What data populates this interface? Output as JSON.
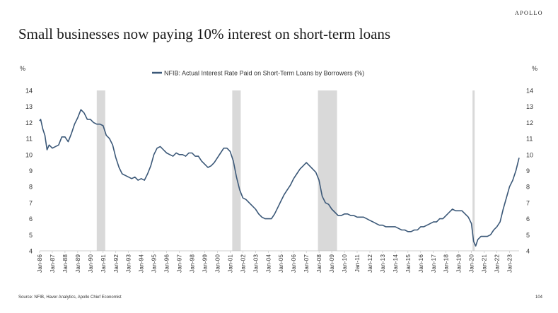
{
  "brand": "APOLLO",
  "title": "Small businesses now paying 10% interest on short-term loans",
  "source": "Source: NFIB, Haver Analytics, Apollo Chief Economist",
  "page_number": "104",
  "chart_data": {
    "type": "line",
    "title": "Small businesses now paying 10% interest on short-term loans",
    "y_unit_left": "%",
    "y_unit_right": "%",
    "ylim": [
      4,
      14
    ],
    "yticks": [
      4,
      5,
      6,
      7,
      8,
      9,
      10,
      11,
      12,
      13,
      14
    ],
    "x_range": [
      "1986-01",
      "2023-10"
    ],
    "x_ticks": [
      "Jan-86",
      "Jan-87",
      "Jan-88",
      "Jan-89",
      "Jan-90",
      "Jan-91",
      "Jan-92",
      "Jan-93",
      "Jan-94",
      "Jan-95",
      "Jan-96",
      "Jan-97",
      "Jan-98",
      "Jan-99",
      "Jan-00",
      "Jan-01",
      "Jan-02",
      "Jan-03",
      "Jan-04",
      "Jan-05",
      "Jan-06",
      "Jan-07",
      "Jan-08",
      "Jan-09",
      "Jan-10",
      "Jan-11",
      "Jan-12",
      "Jan-13",
      "Jan-14",
      "Jan-15",
      "Jan-16",
      "Jan-17",
      "Jan-18",
      "Jan-19",
      "Jan-20",
      "Jan-21",
      "Jan-22",
      "Jan-23"
    ],
    "grid": false,
    "legend_position": "top-center",
    "recessions": [
      {
        "start": "1990-07",
        "end": "1991-03"
      },
      {
        "start": "2001-03",
        "end": "2001-11"
      },
      {
        "start": "2007-12",
        "end": "2009-06"
      },
      {
        "start": "2020-02",
        "end": "2020-04"
      }
    ],
    "series": [
      {
        "name": "NFIB: Actual Interest Rate Paid on Short-Term Loans by Borrowers (%)",
        "color": "#3b5878",
        "points": [
          [
            "1986-01",
            12.1
          ],
          [
            "1986-02",
            12.2
          ],
          [
            "1986-04",
            11.6
          ],
          [
            "1986-06",
            11.2
          ],
          [
            "1986-08",
            10.3
          ],
          [
            "1986-10",
            10.6
          ],
          [
            "1987-01",
            10.4
          ],
          [
            "1987-04",
            10.5
          ],
          [
            "1987-07",
            10.6
          ],
          [
            "1987-10",
            11.1
          ],
          [
            "1988-01",
            11.1
          ],
          [
            "1988-04",
            10.8
          ],
          [
            "1988-07",
            11.3
          ],
          [
            "1988-10",
            11.9
          ],
          [
            "1989-01",
            12.3
          ],
          [
            "1989-04",
            12.8
          ],
          [
            "1989-07",
            12.6
          ],
          [
            "1989-10",
            12.2
          ],
          [
            "1990-01",
            12.2
          ],
          [
            "1990-04",
            12.0
          ],
          [
            "1990-07",
            11.9
          ],
          [
            "1990-10",
            11.9
          ],
          [
            "1991-01",
            11.8
          ],
          [
            "1991-04",
            11.2
          ],
          [
            "1991-07",
            11.0
          ],
          [
            "1991-10",
            10.6
          ],
          [
            "1992-01",
            9.8
          ],
          [
            "1992-04",
            9.2
          ],
          [
            "1992-07",
            8.8
          ],
          [
            "1992-10",
            8.7
          ],
          [
            "1993-01",
            8.6
          ],
          [
            "1993-04",
            8.5
          ],
          [
            "1993-07",
            8.6
          ],
          [
            "1993-10",
            8.4
          ],
          [
            "1994-01",
            8.5
          ],
          [
            "1994-04",
            8.4
          ],
          [
            "1994-07",
            8.8
          ],
          [
            "1994-10",
            9.3
          ],
          [
            "1995-01",
            10.0
          ],
          [
            "1995-04",
            10.4
          ],
          [
            "1995-07",
            10.5
          ],
          [
            "1995-10",
            10.3
          ],
          [
            "1996-01",
            10.1
          ],
          [
            "1996-04",
            10.0
          ],
          [
            "1996-07",
            9.9
          ],
          [
            "1996-10",
            10.1
          ],
          [
            "1997-01",
            10.0
          ],
          [
            "1997-04",
            10.0
          ],
          [
            "1997-07",
            9.9
          ],
          [
            "1997-10",
            10.1
          ],
          [
            "1998-01",
            10.1
          ],
          [
            "1998-04",
            9.9
          ],
          [
            "1998-07",
            9.9
          ],
          [
            "1998-10",
            9.6
          ],
          [
            "1999-01",
            9.4
          ],
          [
            "1999-04",
            9.2
          ],
          [
            "1999-07",
            9.3
          ],
          [
            "1999-10",
            9.5
          ],
          [
            "2000-01",
            9.8
          ],
          [
            "2000-04",
            10.1
          ],
          [
            "2000-07",
            10.4
          ],
          [
            "2000-10",
            10.4
          ],
          [
            "2001-01",
            10.2
          ],
          [
            "2001-04",
            9.6
          ],
          [
            "2001-07",
            8.6
          ],
          [
            "2001-10",
            7.8
          ],
          [
            "2002-01",
            7.3
          ],
          [
            "2002-04",
            7.2
          ],
          [
            "2002-07",
            7.0
          ],
          [
            "2002-10",
            6.8
          ],
          [
            "2003-01",
            6.6
          ],
          [
            "2003-04",
            6.3
          ],
          [
            "2003-07",
            6.1
          ],
          [
            "2003-10",
            6.0
          ],
          [
            "2004-01",
            6.0
          ],
          [
            "2004-04",
            6.0
          ],
          [
            "2004-07",
            6.3
          ],
          [
            "2004-10",
            6.7
          ],
          [
            "2005-01",
            7.1
          ],
          [
            "2005-04",
            7.5
          ],
          [
            "2005-07",
            7.8
          ],
          [
            "2005-10",
            8.1
          ],
          [
            "2006-01",
            8.5
          ],
          [
            "2006-04",
            8.8
          ],
          [
            "2006-07",
            9.1
          ],
          [
            "2006-10",
            9.3
          ],
          [
            "2007-01",
            9.5
          ],
          [
            "2007-04",
            9.3
          ],
          [
            "2007-07",
            9.1
          ],
          [
            "2007-10",
            8.9
          ],
          [
            "2008-01",
            8.4
          ],
          [
            "2008-04",
            7.4
          ],
          [
            "2008-07",
            7.0
          ],
          [
            "2008-10",
            6.9
          ],
          [
            "2009-01",
            6.6
          ],
          [
            "2009-04",
            6.4
          ],
          [
            "2009-07",
            6.2
          ],
          [
            "2009-10",
            6.2
          ],
          [
            "2010-01",
            6.3
          ],
          [
            "2010-04",
            6.3
          ],
          [
            "2010-07",
            6.2
          ],
          [
            "2010-10",
            6.2
          ],
          [
            "2011-01",
            6.1
          ],
          [
            "2011-04",
            6.1
          ],
          [
            "2011-07",
            6.1
          ],
          [
            "2011-10",
            6.0
          ],
          [
            "2012-01",
            5.9
          ],
          [
            "2012-04",
            5.8
          ],
          [
            "2012-07",
            5.7
          ],
          [
            "2012-10",
            5.6
          ],
          [
            "2013-01",
            5.6
          ],
          [
            "2013-04",
            5.5
          ],
          [
            "2013-07",
            5.5
          ],
          [
            "2013-10",
            5.5
          ],
          [
            "2014-01",
            5.5
          ],
          [
            "2014-04",
            5.4
          ],
          [
            "2014-07",
            5.3
          ],
          [
            "2014-10",
            5.3
          ],
          [
            "2015-01",
            5.2
          ],
          [
            "2015-04",
            5.2
          ],
          [
            "2015-07",
            5.3
          ],
          [
            "2015-10",
            5.3
          ],
          [
            "2016-01",
            5.5
          ],
          [
            "2016-04",
            5.5
          ],
          [
            "2016-07",
            5.6
          ],
          [
            "2016-10",
            5.7
          ],
          [
            "2017-01",
            5.8
          ],
          [
            "2017-04",
            5.8
          ],
          [
            "2017-07",
            6.0
          ],
          [
            "2017-10",
            6.0
          ],
          [
            "2018-01",
            6.2
          ],
          [
            "2018-04",
            6.4
          ],
          [
            "2018-07",
            6.6
          ],
          [
            "2018-10",
            6.5
          ],
          [
            "2019-01",
            6.5
          ],
          [
            "2019-04",
            6.5
          ],
          [
            "2019-07",
            6.3
          ],
          [
            "2019-10",
            6.1
          ],
          [
            "2020-01",
            5.7
          ],
          [
            "2020-03",
            4.6
          ],
          [
            "2020-05",
            4.3
          ],
          [
            "2020-07",
            4.7
          ],
          [
            "2020-10",
            4.9
          ],
          [
            "2021-01",
            4.9
          ],
          [
            "2021-04",
            4.9
          ],
          [
            "2021-07",
            5.0
          ],
          [
            "2021-10",
            5.3
          ],
          [
            "2022-01",
            5.5
          ],
          [
            "2022-04",
            5.8
          ],
          [
            "2022-07",
            6.6
          ],
          [
            "2022-10",
            7.3
          ],
          [
            "2023-01",
            8.0
          ],
          [
            "2023-04",
            8.4
          ],
          [
            "2023-07",
            9.0
          ],
          [
            "2023-10",
            9.8
          ]
        ]
      }
    ]
  }
}
